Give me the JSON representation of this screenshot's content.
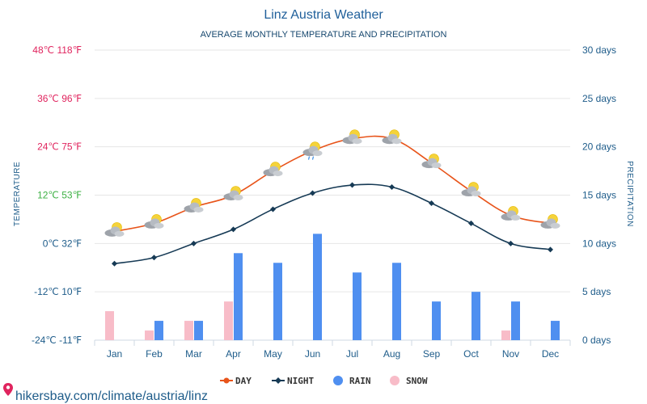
{
  "header": {
    "title": "Linz Austria Weather",
    "subtitle": "AVERAGE MONTHLY TEMPERATURE AND PRECIPITATION"
  },
  "watermark": "hikersbay.com/climate/austria/linz",
  "colors": {
    "day": "#e8541a",
    "night": "#163a55",
    "rain": "#4f8ff0",
    "snow": "#f8bcc8",
    "grid": "#e6e6e6",
    "axis_text": "#1e5c8a"
  },
  "chart_data": {
    "type": "line+bar",
    "title": "Linz Austria Weather",
    "subtitle": "AVERAGE MONTHLY TEMPERATURE AND PRECIPITATION",
    "ylabel_left": "TEMPERATURE",
    "ylabel_right": "PRECIPITATION",
    "categories": [
      "Jan",
      "Feb",
      "Mar",
      "Apr",
      "May",
      "Jun",
      "Jul",
      "Aug",
      "Sep",
      "Oct",
      "Nov",
      "Dec"
    ],
    "y_left": {
      "unit": "°C",
      "range": [
        -24,
        48
      ],
      "ticks": [
        {
          "value": 48,
          "label": "48℃ 118℉",
          "color": "#e0245e"
        },
        {
          "value": 36,
          "label": "36℃ 96℉",
          "color": "#e0245e"
        },
        {
          "value": 24,
          "label": "24℃ 75℉",
          "color": "#e0245e"
        },
        {
          "value": 12,
          "label": "12℃ 53℉",
          "color": "#3cb043"
        },
        {
          "value": 0,
          "label": "0℃ 32℉",
          "color": "#1e5c8a"
        },
        {
          "value": -12,
          "label": "-12℃ 10℉",
          "color": "#1e5c8a"
        },
        {
          "value": -24,
          "label": "-24℃ -11℉",
          "color": "#1e5c8a"
        }
      ]
    },
    "y_right": {
      "unit": "days",
      "range": [
        0,
        30
      ],
      "ticks": [
        {
          "value": 30,
          "label": "30 days"
        },
        {
          "value": 25,
          "label": "25 days"
        },
        {
          "value": 20,
          "label": "20 days"
        },
        {
          "value": 15,
          "label": "15 days"
        },
        {
          "value": 10,
          "label": "10 days"
        },
        {
          "value": 5,
          "label": "5 days"
        },
        {
          "value": 0,
          "label": "0 days"
        }
      ]
    },
    "grid": true,
    "legend_position": "bottom-center",
    "series": [
      {
        "name": "DAY",
        "type": "line",
        "axis": "left",
        "values": [
          3,
          5,
          9,
          12,
          18,
          23,
          26,
          26,
          20,
          13,
          7,
          5
        ]
      },
      {
        "name": "NIGHT",
        "type": "line",
        "axis": "left",
        "values": [
          -5,
          -3.5,
          0,
          3.5,
          8.5,
          12.5,
          14.5,
          14,
          10,
          5,
          0,
          -1.5
        ]
      },
      {
        "name": "RAIN",
        "type": "bar",
        "axis": "right",
        "values": [
          0,
          2,
          2,
          9,
          8,
          11,
          7,
          8,
          4,
          5,
          4,
          2
        ]
      },
      {
        "name": "SNOW",
        "type": "bar",
        "axis": "right",
        "values": [
          3,
          1,
          2,
          4,
          0,
          0,
          0,
          0,
          0,
          0,
          1,
          0
        ]
      }
    ],
    "weather_icons": [
      "partly-cloudy-icon",
      "partly-cloudy-icon",
      "partly-cloudy-icon",
      "partly-cloudy-icon",
      "partly-cloudy-icon",
      "rain-cloud-icon",
      "partly-cloudy-icon",
      "partly-cloudy-icon",
      "partly-cloudy-icon",
      "partly-cloudy-icon",
      "partly-cloudy-icon",
      "partly-cloudy-icon"
    ]
  }
}
